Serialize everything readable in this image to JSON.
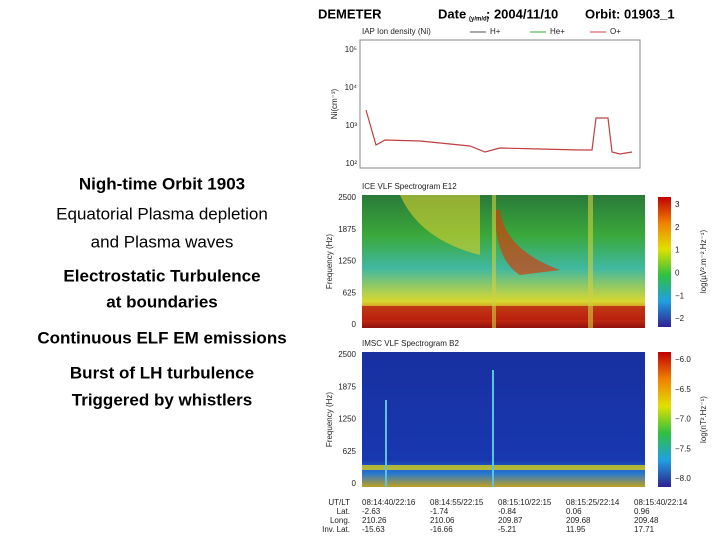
{
  "header": {
    "mission": "DEMETER",
    "date_label": "Date",
    "date_format": "(y/m/d)",
    "date": ": 2004/11/10",
    "orbit": "Orbit: 01903_1"
  },
  "notes": [
    "Nigh-time Orbit 1903",
    "Equatorial Plasma depletion",
    "and Plasma waves",
    "Electrostatic Turbulence",
    "at boundaries",
    "Continuous ELF EM emissions",
    "Burst of LH turbulence",
    "Triggered by whistlers"
  ],
  "ion_panel": {
    "title": "IAP Ion density (Ni)",
    "legend": [
      "H+",
      "He+",
      "O+"
    ],
    "ylabel": "Ni(cm⁻³)",
    "yticks": [
      "10⁵",
      "10⁴",
      "10³",
      "10²"
    ]
  },
  "e_panel": {
    "title": "ICE VLF Spectrogram E12",
    "ylabel": "Frequency (Hz)",
    "yticks": [
      "2500",
      "1875",
      "1250",
      "625",
      "0"
    ],
    "colorbar_label": "log(µV².m⁻².Hz⁻¹)",
    "colorbar_ticks": [
      "3",
      "2",
      "1",
      "0",
      "−1",
      "−2"
    ]
  },
  "b_panel": {
    "title": "IMSC VLF Spectrogram B2",
    "ylabel": "Frequency (Hz)",
    "yticks": [
      "2500",
      "1875",
      "1250",
      "625",
      "0"
    ],
    "colorbar_label": "log(nT².Hz⁻¹)",
    "colorbar_ticks": [
      "−6.0",
      "−6.5",
      "−7.0",
      "−7.5",
      "−8.0"
    ]
  },
  "footer": {
    "row_labels": [
      "UT/LT",
      "Lat.",
      "Long.",
      "Inv. Lat."
    ],
    "columns": [
      [
        "08:14:40/22:16",
        "-2.63",
        "210.26",
        "-15.63"
      ],
      [
        "08:14:55/22:15",
        "-1.74",
        "210.06",
        "-16.66"
      ],
      [
        "08:15:10/22:15",
        "-0.84",
        "209.87",
        "-5.21"
      ],
      [
        "08:15:25/22:14",
        "0.06",
        "209.68",
        "11.95"
      ],
      [
        "08:15:40/22:14",
        "0.96",
        "209.48",
        "17.71"
      ]
    ]
  }
}
